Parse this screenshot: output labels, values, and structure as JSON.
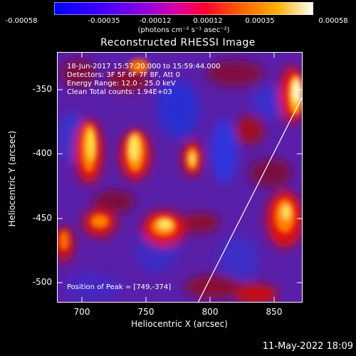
{
  "colorbar": {
    "ticks": [
      "-0.00058",
      "-0.00035",
      "-0.00012",
      "0.00012",
      "0.00035",
      "0.00058"
    ],
    "units": "(photons cm⁻² s⁻¹ asec⁻²)",
    "colors": [
      "#0000ff",
      "#6a00ff",
      "#d000c0",
      "#ff0030",
      "#ff8000",
      "#ffffe0"
    ]
  },
  "title": "Reconstructed RHESSI Image",
  "info": {
    "line1": "18-Jun-2017 15:57:20.000 to 15:59:44.000",
    "line2": "Detectors: 3F 5F 6F 7F 8F, Att 0",
    "line3": "Energy Range: 12.0 - 25.0 keV",
    "line4": "Clean     Total counts: 1.94E+03"
  },
  "peak": "Position of Peak = [749,-374]",
  "axes": {
    "xlabel": "Heliocentric X (arcsec)",
    "ylabel": "Heliocentric Y (arcsec)",
    "xticks": [
      "700",
      "750",
      "800",
      "850"
    ],
    "yticks": [
      "-350",
      "-400",
      "-450",
      "-500"
    ],
    "xlim": [
      682,
      875
    ],
    "ylim": [
      -516,
      -320
    ]
  },
  "datestamp": "11-May-2022 18:09"
}
